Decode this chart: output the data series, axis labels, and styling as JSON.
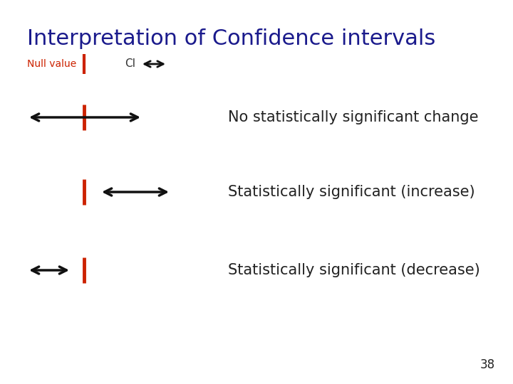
{
  "title": "Interpretation of Confidence intervals",
  "title_color": "#1a1a8c",
  "title_fontsize": 22,
  "background_color": "#ffffff",
  "null_value_label": "Null value",
  "null_value_color": "#cc2200",
  "ci_label": "CI",
  "ci_label_color": "#333333",
  "row1_text": "No statistically significant change",
  "row2_text": "Statistically significant (increase)",
  "row3_text": "Statistically significant (decrease)",
  "label_color": "#222222",
  "label_fontsize": 15,
  "arrow_color": "#111111",
  "null_line_color": "#cc2200",
  "page_number": "38",
  "null_value_fontsize": 10,
  "ci_fontsize": 11
}
